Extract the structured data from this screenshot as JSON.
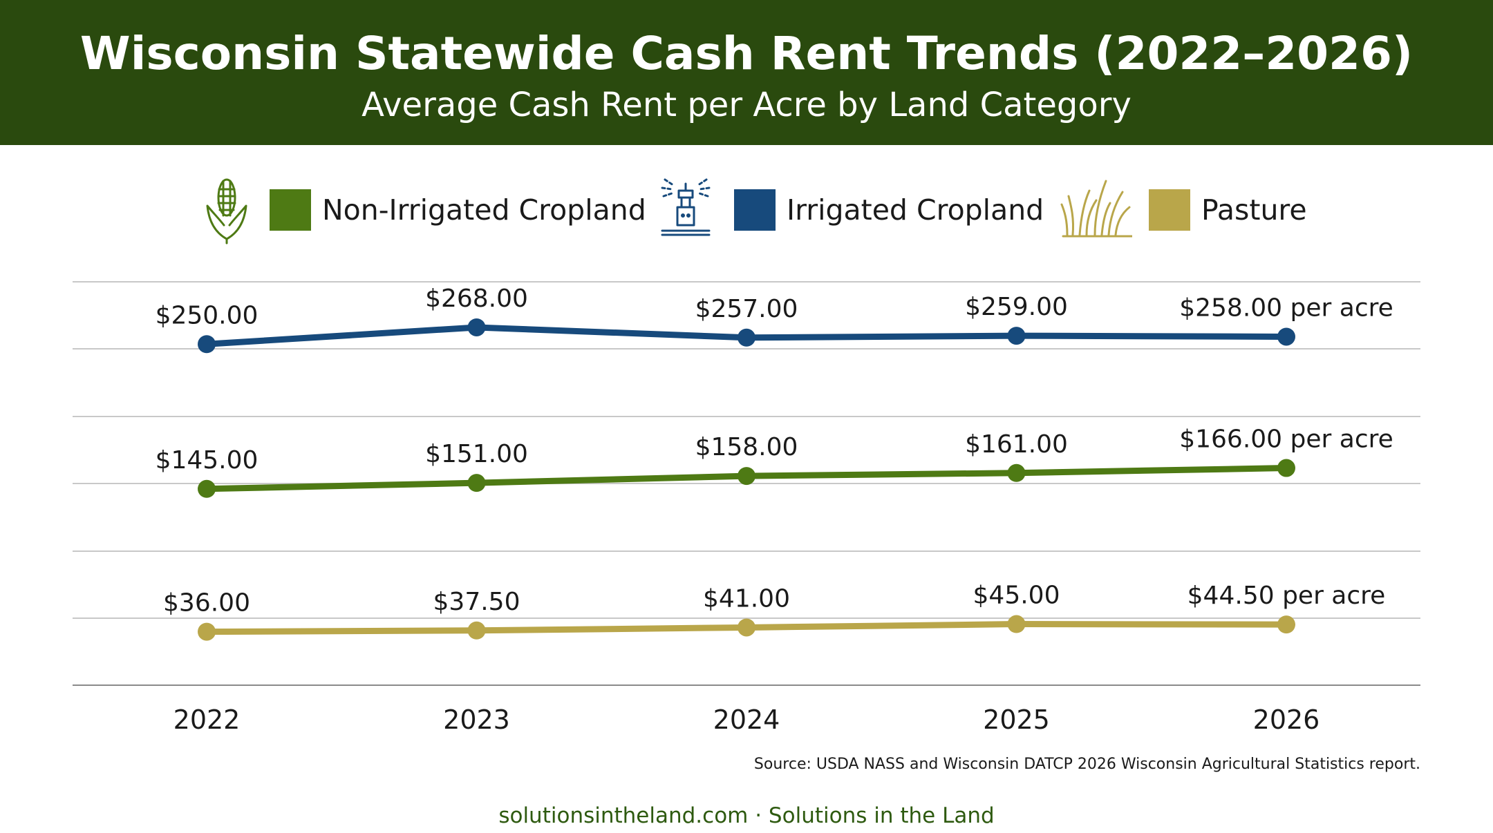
{
  "header": {
    "title": "Wisconsin Statewide Cash Rent Trends (2022–2026)",
    "subtitle": "Average Cash Rent per Acre by Land Category"
  },
  "legend": [
    {
      "label": "Non-Irrigated Cropland",
      "color": "#4e7a14",
      "icon": "corn-icon"
    },
    {
      "label": "Irrigated Cropland",
      "color": "#174a7c",
      "icon": "sprinkler-icon"
    },
    {
      "label": "Pasture",
      "color": "#b9a64a",
      "icon": "grass-icon"
    }
  ],
  "chart_data": {
    "type": "line",
    "title": "Wisconsin Statewide Cash Rent Trends (2022–2026)",
    "subtitle": "Average Cash Rent per Acre by Land Category",
    "layout": "three stacked panels, one per series, horizontal gridlines, no y-axis",
    "categories": [
      "2022",
      "2023",
      "2024",
      "2025",
      "2026"
    ],
    "series": [
      {
        "name": "Irrigated Cropland",
        "color": "#174a7c",
        "values": [
          250.0,
          268.0,
          257.0,
          259.0,
          258.0
        ],
        "labels": [
          "$250.00",
          "$268.00",
          "$257.00",
          "$259.00",
          "$258.00 per acre"
        ]
      },
      {
        "name": "Non-Irrigated Cropland",
        "color": "#4e7a14",
        "values": [
          145.0,
          151.0,
          158.0,
          161.0,
          166.0
        ],
        "labels": [
          "$145.00",
          "$151.00",
          "$158.00",
          "$161.00",
          "$166.00 per acre"
        ]
      },
      {
        "name": "Pasture",
        "color": "#b9a64a",
        "values": [
          36.0,
          37.5,
          41.0,
          45.0,
          44.5
        ],
        "labels": [
          "$36.00",
          "$37.50",
          "$41.00",
          "$45.00",
          "$44.50 per acre"
        ]
      }
    ]
  },
  "source": "Source: USDA NASS and Wisconsin DATCP 2026 Wisconsin Agricultural Statistics report.",
  "footer": "solutionsintheland.com · Solutions in the Land"
}
